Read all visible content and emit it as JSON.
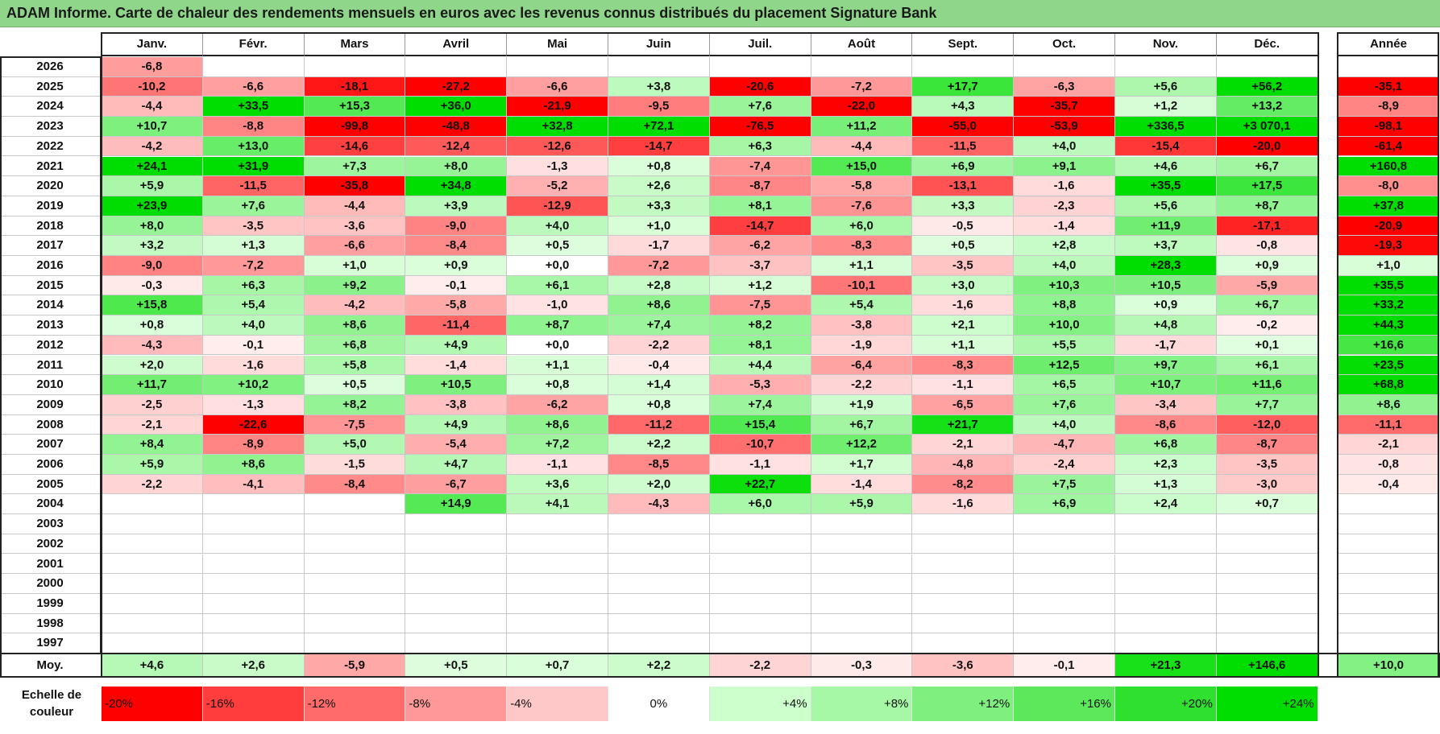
{
  "title": "ADAM Informe. Carte de chaleur des rendements mensuels en euros avec les revenus connus distribués du placement Signature Bank",
  "months": [
    "Janv.",
    "Févr.",
    "Mars",
    "Avril",
    "Mai",
    "Juin",
    "Juil.",
    "Août",
    "Sept.",
    "Oct.",
    "Nov.",
    "Déc."
  ],
  "year_header": "Année",
  "avg_label": "Moy.",
  "scale_label_line1": "Echelle de",
  "scale_label_line2": "couleur",
  "chart_data": {
    "type": "heatmap",
    "title": "ADAM Informe. Carte de chaleur des rendements mensuels en euros avec les revenus connus distribués du placement Signature Bank",
    "rows": [
      {
        "year": "2026",
        "values": [
          "-6,8",
          "",
          "",
          "",
          "",
          "",
          "",
          "",
          "",
          "",
          "",
          ""
        ],
        "annual": ""
      },
      {
        "year": "2025",
        "values": [
          "-10,2",
          "-6,6",
          "-18,1",
          "-27,2",
          "-6,6",
          "+3,8",
          "-20,6",
          "-7,2",
          "+17,7",
          "-6,3",
          "+5,6",
          "+56,2"
        ],
        "annual": "-35,1"
      },
      {
        "year": "2024",
        "values": [
          "-4,4",
          "+33,5",
          "+15,3",
          "+36,0",
          "-21,9",
          "-9,5",
          "+7,6",
          "-22,0",
          "+4,3",
          "-35,7",
          "+1,2",
          "+13,2"
        ],
        "annual": "-8,9"
      },
      {
        "year": "2023",
        "values": [
          "+10,7",
          "-8,8",
          "-99,8",
          "-48,8",
          "+32,8",
          "+72,1",
          "-76,5",
          "+11,2",
          "-55,0",
          "-53,9",
          "+336,5",
          "+3 070,1"
        ],
        "annual": "-98,1"
      },
      {
        "year": "2022",
        "values": [
          "-4,2",
          "+13,0",
          "-14,6",
          "-12,4",
          "-12,6",
          "-14,7",
          "+6,3",
          "-4,4",
          "-11,5",
          "+4,0",
          "-15,4",
          "-20,0"
        ],
        "annual": "-61,4"
      },
      {
        "year": "2021",
        "values": [
          "+24,1",
          "+31,9",
          "+7,3",
          "+8,0",
          "-1,3",
          "+0,8",
          "-7,4",
          "+15,0",
          "+6,9",
          "+9,1",
          "+4,6",
          "+6,7"
        ],
        "annual": "+160,8"
      },
      {
        "year": "2020",
        "values": [
          "+5,9",
          "-11,5",
          "-35,8",
          "+34,8",
          "-5,2",
          "+2,6",
          "-8,7",
          "-5,8",
          "-13,1",
          "-1,6",
          "+35,5",
          "+17,5"
        ],
        "annual": "-8,0"
      },
      {
        "year": "2019",
        "values": [
          "+23,9",
          "+7,6",
          "-4,4",
          "+3,9",
          "-12,9",
          "+3,3",
          "+8,1",
          "-7,6",
          "+3,3",
          "-2,3",
          "+5,6",
          "+8,7"
        ],
        "annual": "+37,8"
      },
      {
        "year": "2018",
        "values": [
          "+8,0",
          "-3,5",
          "-3,6",
          "-9,0",
          "+4,0",
          "+1,0",
          "-14,7",
          "+6,0",
          "-0,5",
          "-1,4",
          "+11,9",
          "-17,1"
        ],
        "annual": "-20,9"
      },
      {
        "year": "2017",
        "values": [
          "+3,2",
          "+1,3",
          "-6,6",
          "-8,4",
          "+0,5",
          "-1,7",
          "-6,2",
          "-8,3",
          "+0,5",
          "+2,8",
          "+3,7",
          "-0,8"
        ],
        "annual": "-19,3"
      },
      {
        "year": "2016",
        "values": [
          "-9,0",
          "-7,2",
          "+1,0",
          "+0,9",
          "+0,0",
          "-7,2",
          "-3,7",
          "+1,1",
          "-3,5",
          "+4,0",
          "+28,3",
          "+0,9"
        ],
        "annual": "+1,0"
      },
      {
        "year": "2015",
        "values": [
          "-0,3",
          "+6,3",
          "+9,2",
          "-0,1",
          "+6,1",
          "+2,8",
          "+1,2",
          "-10,1",
          "+3,0",
          "+10,3",
          "+10,5",
          "-5,9"
        ],
        "annual": "+35,5"
      },
      {
        "year": "2014",
        "values": [
          "+15,8",
          "+5,4",
          "-4,2",
          "-5,8",
          "-1,0",
          "+8,6",
          "-7,5",
          "+5,4",
          "-1,6",
          "+8,8",
          "+0,9",
          "+6,7"
        ],
        "annual": "+33,2"
      },
      {
        "year": "2013",
        "values": [
          "+0,8",
          "+4,0",
          "+8,6",
          "-11,4",
          "+8,7",
          "+7,4",
          "+8,2",
          "-3,8",
          "+2,1",
          "+10,0",
          "+4,8",
          "-0,2"
        ],
        "annual": "+44,3"
      },
      {
        "year": "2012",
        "values": [
          "-4,3",
          "-0,1",
          "+6,8",
          "+4,9",
          "+0,0",
          "-2,2",
          "+8,1",
          "-1,9",
          "+1,1",
          "+5,5",
          "-1,7",
          "+0,1"
        ],
        "annual": "+16,6"
      },
      {
        "year": "2011",
        "values": [
          "+2,0",
          "-1,6",
          "+5,8",
          "-1,4",
          "+1,1",
          "-0,4",
          "+4,4",
          "-6,4",
          "-8,3",
          "+12,5",
          "+9,7",
          "+6,1"
        ],
        "annual": "+23,5"
      },
      {
        "year": "2010",
        "values": [
          "+11,7",
          "+10,2",
          "+0,5",
          "+10,5",
          "+0,8",
          "+1,4",
          "-5,3",
          "-2,2",
          "-1,1",
          "+6,5",
          "+10,7",
          "+11,6"
        ],
        "annual": "+68,8"
      },
      {
        "year": "2009",
        "values": [
          "-2,5",
          "-1,3",
          "+8,2",
          "-3,8",
          "-6,2",
          "+0,8",
          "+7,4",
          "+1,9",
          "-6,5",
          "+7,6",
          "-3,4",
          "+7,7"
        ],
        "annual": "+8,6"
      },
      {
        "year": "2008",
        "values": [
          "-2,1",
          "-22,6",
          "-7,5",
          "+4,9",
          "+8,6",
          "-11,2",
          "+15,4",
          "+6,7",
          "+21,7",
          "+4,0",
          "-8,6",
          "-12,0"
        ],
        "annual": "-11,1"
      },
      {
        "year": "2007",
        "values": [
          "+8,4",
          "-8,9",
          "+5,0",
          "-5,4",
          "+7,2",
          "+2,2",
          "-10,7",
          "+12,2",
          "-2,1",
          "-4,7",
          "+6,8",
          "-8,7"
        ],
        "annual": "-2,1"
      },
      {
        "year": "2006",
        "values": [
          "+5,9",
          "+8,6",
          "-1,5",
          "+4,7",
          "-1,1",
          "-8,5",
          "-1,1",
          "+1,7",
          "-4,8",
          "-2,4",
          "+2,3",
          "-3,5"
        ],
        "annual": "-0,8"
      },
      {
        "year": "2005",
        "values": [
          "-2,2",
          "-4,1",
          "-8,4",
          "-6,7",
          "+3,6",
          "+2,0",
          "+22,7",
          "-1,4",
          "-8,2",
          "+7,5",
          "+1,3",
          "-3,0"
        ],
        "annual": "-0,4"
      },
      {
        "year": "2004",
        "values": [
          "",
          "",
          "",
          "+14,9",
          "+4,1",
          "-4,3",
          "+6,0",
          "+5,9",
          "-1,6",
          "+6,9",
          "+2,4",
          "+0,7"
        ],
        "annual": ""
      },
      {
        "year": "2003",
        "values": [
          "",
          "",
          "",
          "",
          "",
          "",
          "",
          "",
          "",
          "",
          "",
          ""
        ],
        "annual": ""
      },
      {
        "year": "2002",
        "values": [
          "",
          "",
          "",
          "",
          "",
          "",
          "",
          "",
          "",
          "",
          "",
          ""
        ],
        "annual": ""
      },
      {
        "year": "2001",
        "values": [
          "",
          "",
          "",
          "",
          "",
          "",
          "",
          "",
          "",
          "",
          "",
          ""
        ],
        "annual": ""
      },
      {
        "year": "2000",
        "values": [
          "",
          "",
          "",
          "",
          "",
          "",
          "",
          "",
          "",
          "",
          "",
          ""
        ],
        "annual": ""
      },
      {
        "year": "1999",
        "values": [
          "",
          "",
          "",
          "",
          "",
          "",
          "",
          "",
          "",
          "",
          "",
          ""
        ],
        "annual": ""
      },
      {
        "year": "1998",
        "values": [
          "",
          "",
          "",
          "",
          "",
          "",
          "",
          "",
          "",
          "",
          "",
          ""
        ],
        "annual": ""
      },
      {
        "year": "1997",
        "values": [
          "",
          "",
          "",
          "",
          "",
          "",
          "",
          "",
          "",
          "",
          "",
          ""
        ],
        "annual": ""
      }
    ],
    "average": {
      "values": [
        "+4,6",
        "+2,6",
        "-5,9",
        "+0,5",
        "+0,7",
        "+2,2",
        "-2,2",
        "-0,3",
        "-3,6",
        "-0,1",
        "+21,3",
        "+146,6"
      ],
      "annual": "+10,0"
    },
    "color_scale": {
      "stops": [
        {
          "label": "-20%",
          "color": "#ff0000"
        },
        {
          "label": "-16%",
          "color": "#ff3d3d"
        },
        {
          "label": "-12%",
          "color": "#ff6b6b"
        },
        {
          "label": "-8%",
          "color": "#ff9898"
        },
        {
          "label": "-4%",
          "color": "#ffc8c8"
        },
        {
          "label": "0%",
          "color": "#ffffff"
        },
        {
          "label": "+4%",
          "color": "#ccffcc"
        },
        {
          "label": "+8%",
          "color": "#a6f7a6"
        },
        {
          "label": "+12%",
          "color": "#7ff07f"
        },
        {
          "label": "+16%",
          "color": "#5be85b"
        },
        {
          "label": "+20%",
          "color": "#2fe02f"
        },
        {
          "label": "+24%",
          "color": "#00dd00"
        }
      ]
    }
  }
}
